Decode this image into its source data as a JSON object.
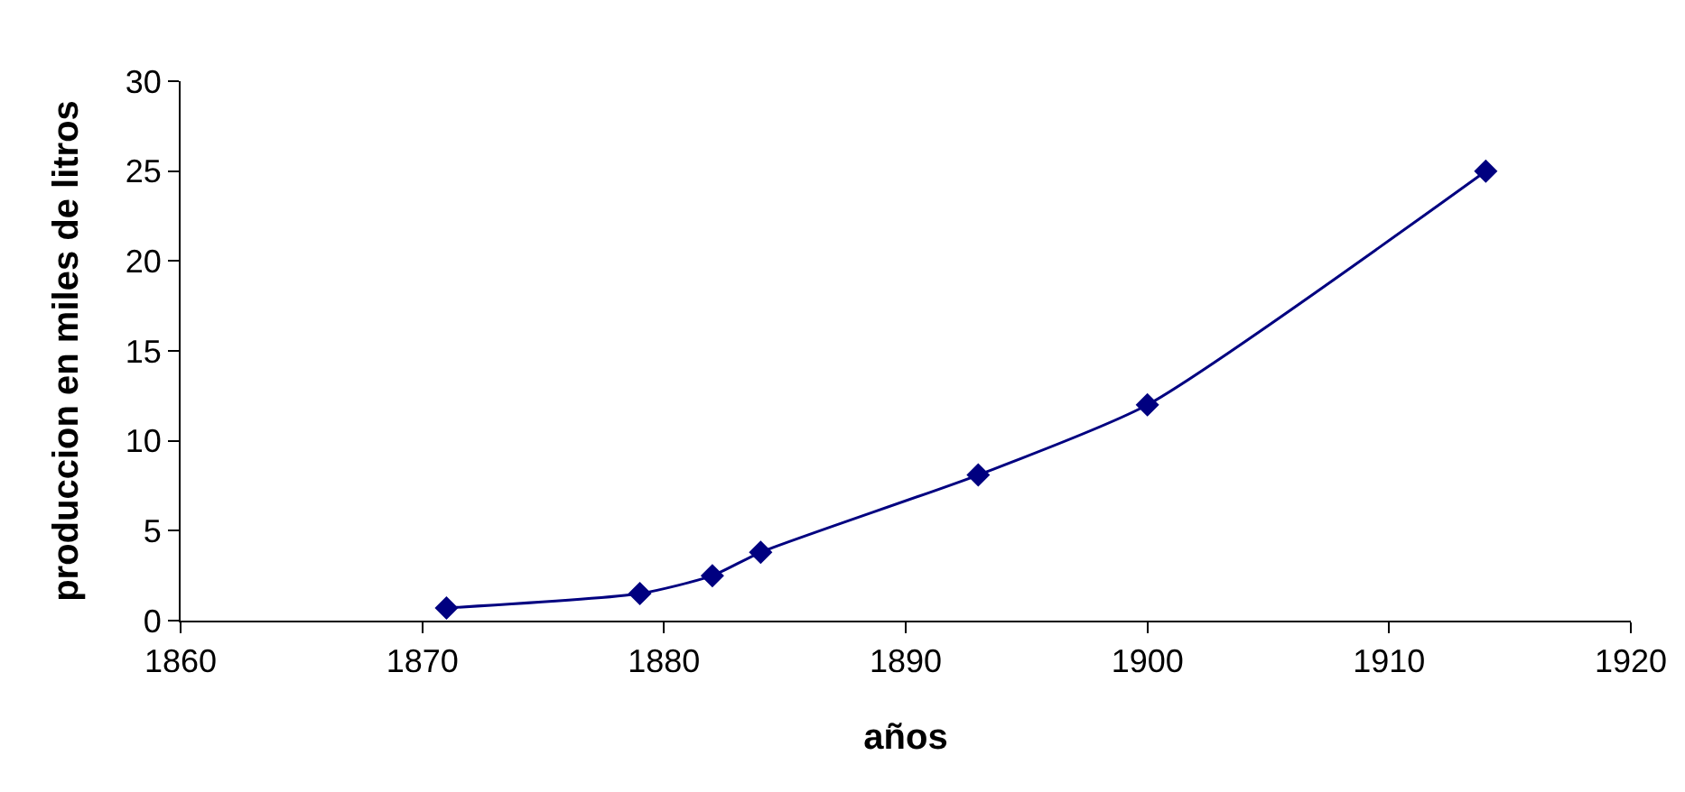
{
  "chart_data": {
    "type": "line",
    "xlabel": "años",
    "ylabel": "produccion en miles de litros",
    "x": [
      1871,
      1879,
      1882,
      1884,
      1893,
      1900,
      1914
    ],
    "series": [
      {
        "color": "#000080",
        "values": [
          0.7,
          1.5,
          2.5,
          3.8,
          8.1,
          12,
          25
        ]
      }
    ],
    "xlim": [
      1860,
      1920
    ],
    "xticks": [
      1860,
      1870,
      1880,
      1890,
      1900,
      1910,
      1920
    ],
    "ylim": [
      0,
      30
    ],
    "yticks": [
      0,
      5,
      10,
      15,
      20,
      25,
      30
    ],
    "grid": false,
    "legend": false,
    "marker": "diamond",
    "line_style": "solid"
  }
}
